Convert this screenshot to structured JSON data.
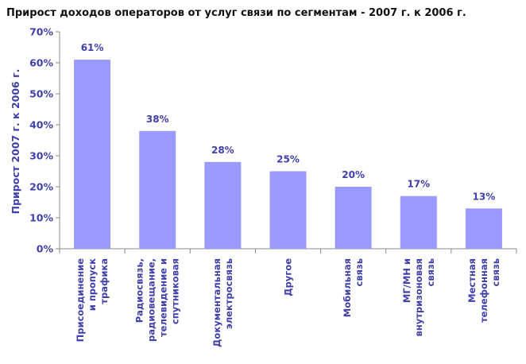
{
  "chart_data": {
    "type": "bar",
    "title": "Прирост доходов операторов от услуг связи по сегментам - 2007 г. к 2006 г.",
    "ylabel": "Прирост 2007 г. к 2006 г.",
    "xlabel": "",
    "ylim": [
      0,
      70
    ],
    "yticks": [
      0,
      10,
      20,
      30,
      40,
      50,
      60,
      70
    ],
    "ytick_labels": [
      "0%",
      "10%",
      "20%",
      "30%",
      "40%",
      "50%",
      "60%",
      "70%"
    ],
    "grid": false,
    "legend": "none",
    "categories": [
      [
        "Присоединение",
        "и пропуск",
        "трафика"
      ],
      [
        "Радиосвязь,",
        "радиовещание,",
        "телевидение и",
        "спутниковая"
      ],
      [
        "Документальная",
        "электросвязь"
      ],
      [
        "Другое"
      ],
      [
        "Мобильная",
        "связь"
      ],
      [
        "МГ/МН и",
        "внутризоновая",
        "связь"
      ],
      [
        "Местная",
        "телефонная",
        "связь"
      ]
    ],
    "values": [
      61,
      38,
      28,
      25,
      20,
      17,
      13
    ],
    "data_labels": [
      "61%",
      "38%",
      "28%",
      "25%",
      "20%",
      "17%",
      "13%"
    ]
  },
  "colors": {
    "bar": "#9999ff",
    "text": "#3f3faa",
    "title": "#111111",
    "axis": "#888888"
  }
}
